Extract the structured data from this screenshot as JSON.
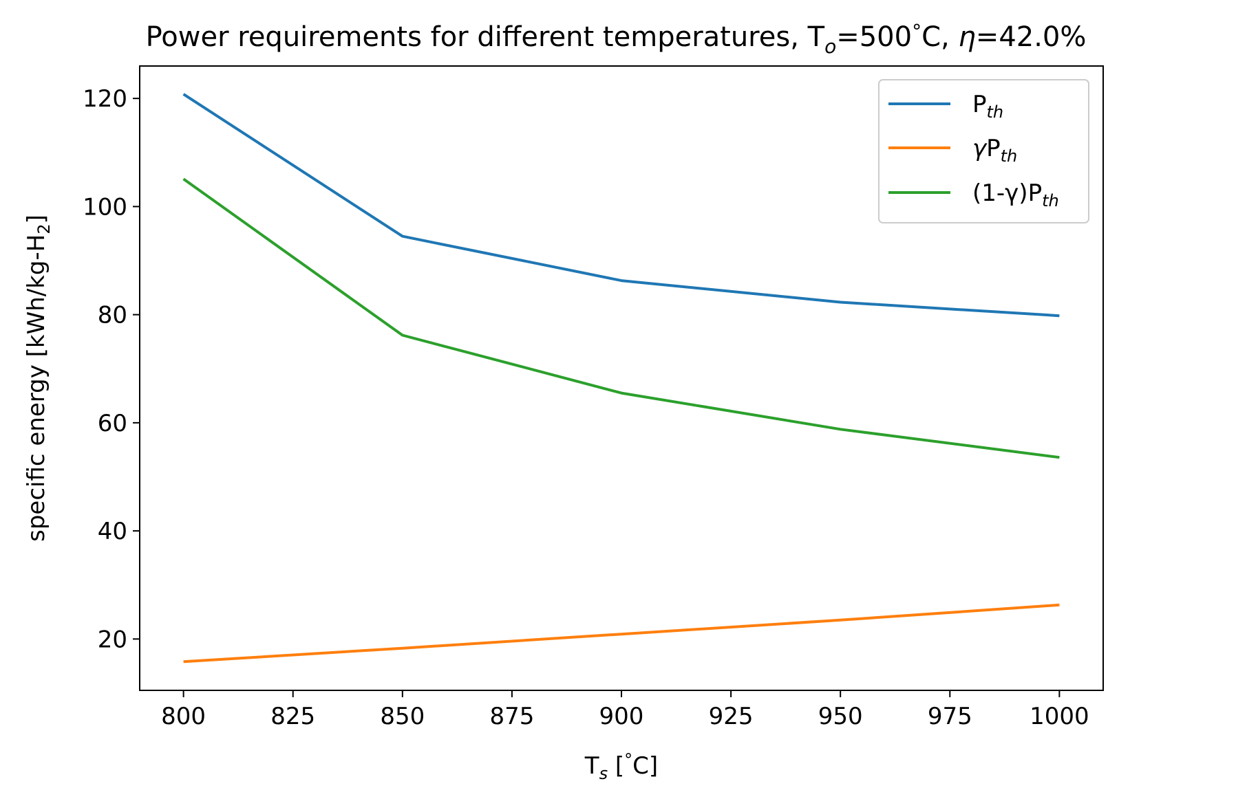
{
  "chart_data": {
    "type": "line",
    "title": {
      "prefix": "Power requirements for different temperatures, T",
      "sub": "o",
      "mid": "=500",
      "deg": "°",
      "unit": "C, ",
      "eta": "η",
      "suffix": "=42.0%"
    },
    "xlabel": {
      "main": "T",
      "sub": "s",
      "rest": " [",
      "deg": "°",
      "unit": "C]"
    },
    "ylabel": {
      "main": "specific energy [kWh/kg-H",
      "sub": "2",
      "rest": "]"
    },
    "xlim": [
      790,
      1010
    ],
    "ylim": [
      10.5,
      126
    ],
    "xticks": [
      800,
      825,
      850,
      875,
      900,
      925,
      950,
      975,
      1000
    ],
    "yticks": [
      20,
      40,
      60,
      80,
      100,
      120
    ],
    "x": [
      800,
      850,
      900,
      950,
      1000
    ],
    "series": [
      {
        "name": "P_th",
        "color": "#1f77b4",
        "values": [
          120.8,
          94.5,
          86.3,
          82.3,
          79.8
        ]
      },
      {
        "name": "γP_th",
        "color": "#ff7f0e",
        "values": [
          15.8,
          18.3,
          20.9,
          23.5,
          26.3
        ]
      },
      {
        "name": "(1-γ)P_th",
        "color": "#2ca02c",
        "values": [
          105.1,
          76.2,
          65.5,
          58.8,
          53.6
        ]
      }
    ],
    "legend": {
      "placement": "top-right",
      "entries": [
        {
          "pre": "",
          "main": "P",
          "sub": "th"
        },
        {
          "pre": "γ",
          "main": "P",
          "sub": "th"
        },
        {
          "pre": "(1-γ)",
          "main": "P",
          "sub": "th"
        }
      ]
    },
    "grid": false
  }
}
